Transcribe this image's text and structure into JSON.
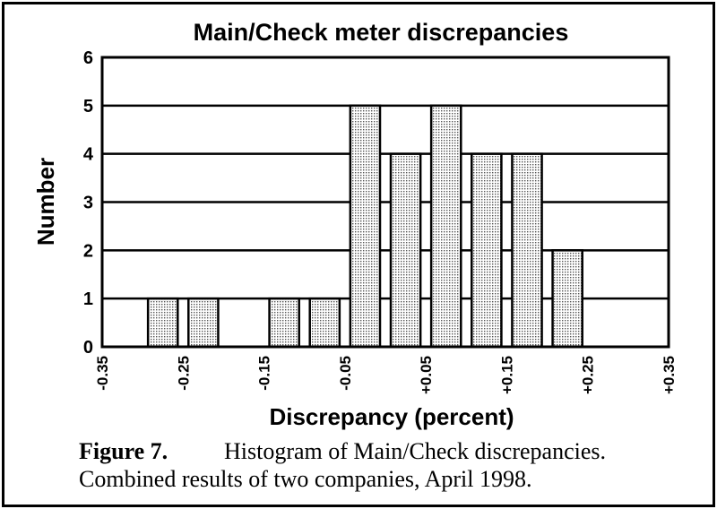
{
  "chart_data": {
    "type": "bar",
    "title": "Main/Check meter discrepancies",
    "xlabel": "Discrepancy (percent)",
    "ylabel": "Number",
    "ylim": [
      0,
      6
    ],
    "yticks": [
      "0",
      "1",
      "2",
      "3",
      "4",
      "5",
      "6"
    ],
    "xticks": [
      "-0.35",
      "-0.25",
      "-0.15",
      "-0.05",
      "+0.05",
      "+0.15",
      "+0.25",
      "+0.35"
    ],
    "categories": [
      "-0.35",
      "-0.325",
      "-0.30",
      "-0.275",
      "-0.25",
      "-0.225",
      "-0.20",
      "-0.175",
      "-0.15",
      "-0.125",
      "-0.10",
      "-0.075",
      "-0.05",
      "-0.025",
      "0.00",
      "+0.025",
      "+0.05",
      "+0.075",
      "+0.10",
      "+0.125",
      "+0.15",
      "+0.175",
      "+0.20",
      "+0.225",
      "+0.25",
      "+0.275",
      "+0.30",
      "+0.325",
      "+0.35"
    ],
    "bars": [
      {
        "x": -0.275,
        "value": 1
      },
      {
        "x": -0.225,
        "value": 1
      },
      {
        "x": -0.125,
        "value": 1
      },
      {
        "x": -0.075,
        "value": 1
      },
      {
        "x": -0.025,
        "value": 5
      },
      {
        "x": 0.025,
        "value": 4
      },
      {
        "x": 0.075,
        "value": 5
      },
      {
        "x": 0.125,
        "value": 4
      },
      {
        "x": 0.175,
        "value": 4
      },
      {
        "x": 0.225,
        "value": 2
      }
    ],
    "grid": true,
    "bar_fill": "#d9d9d9"
  },
  "caption": {
    "figure_label": "Figure 7.",
    "line1": "Histogram of Main/Check discrepancies.",
    "line2": "Combined results of two companies, April 1998."
  }
}
